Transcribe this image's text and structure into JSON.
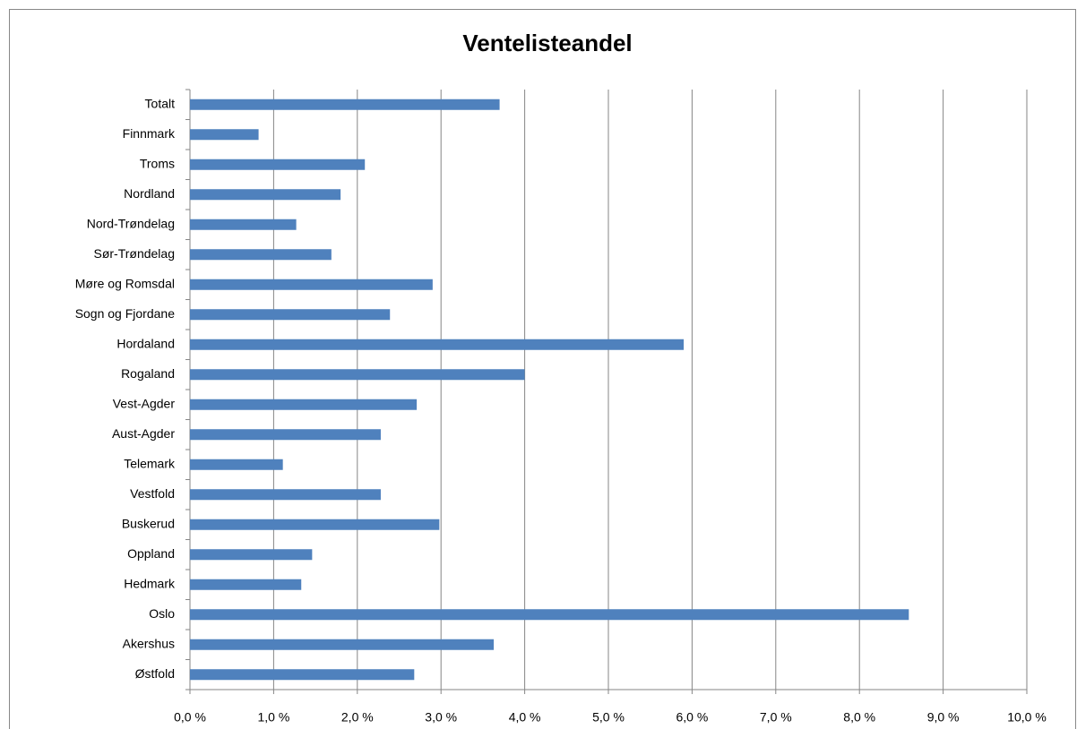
{
  "chart_data": {
    "type": "hbar",
    "title": "Ventelisteandel",
    "categories": [
      "Totalt",
      "Finnmark",
      "Troms",
      "Nordland",
      "Nord-Trøndelag",
      "Sør-Trøndelag",
      "Møre og Romsdal",
      "Sogn og Fjordane",
      "Hordaland",
      "Rogaland",
      "Vest-Agder",
      "Aust-Agder",
      "Telemark",
      "Vestfold",
      "Buskerud",
      "Oppland",
      "Hedmark",
      "Oslo",
      "Akershus",
      "Østfold"
    ],
    "values": [
      3.7,
      0.82,
      2.09,
      1.8,
      1.27,
      1.69,
      2.9,
      2.39,
      5.9,
      4.0,
      2.71,
      2.28,
      1.11,
      2.28,
      2.98,
      1.46,
      1.33,
      8.59,
      3.63,
      2.68
    ],
    "color": "#4f81bd",
    "xlim": [
      0,
      10
    ],
    "xticks": [
      {
        "value": 0,
        "label": "0,0 %"
      },
      {
        "value": 1,
        "label": "1,0 %"
      },
      {
        "value": 2,
        "label": "2,0 %"
      },
      {
        "value": 3,
        "label": "3,0 %"
      },
      {
        "value": 4,
        "label": "4,0 %"
      },
      {
        "value": 5,
        "label": "5,0 %"
      },
      {
        "value": 6,
        "label": "6,0 %"
      },
      {
        "value": 7,
        "label": "7,0 %"
      },
      {
        "value": 8,
        "label": "8,0 %"
      },
      {
        "value": 9,
        "label": "9,0 %"
      },
      {
        "value": 10,
        "label": "10,0 %"
      }
    ],
    "grid": true
  }
}
